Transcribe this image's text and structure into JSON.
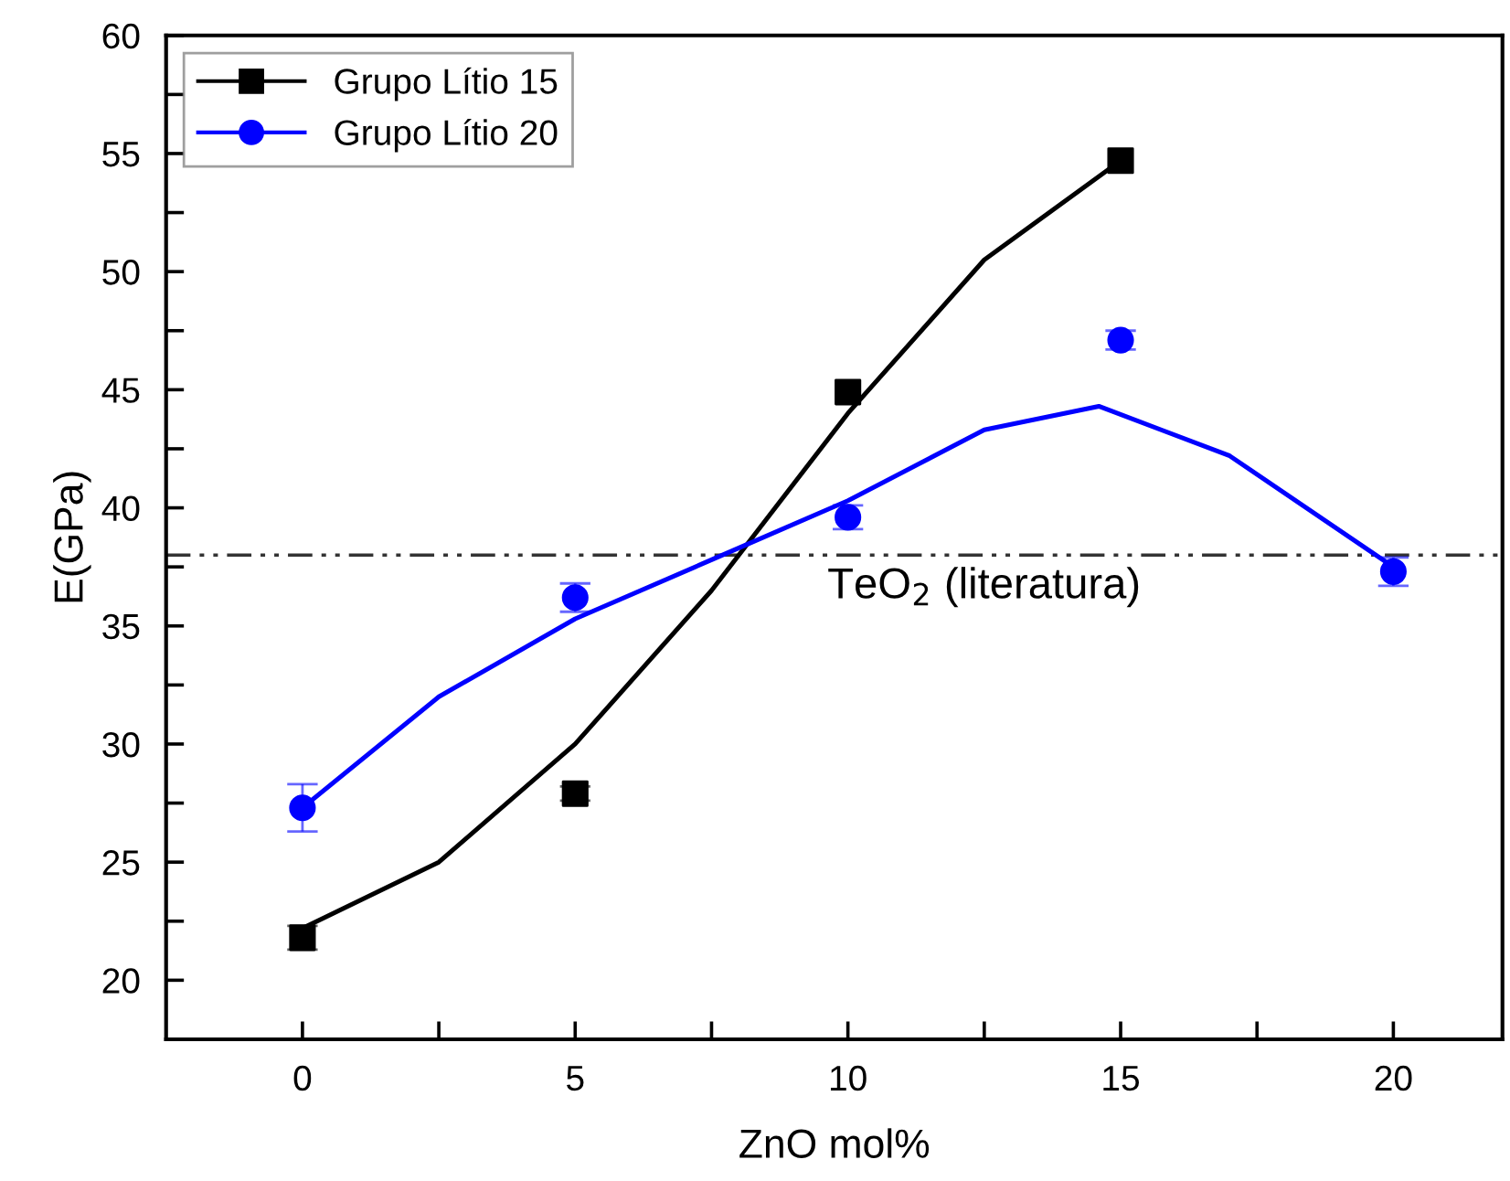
{
  "chart_data": {
    "type": "scatter",
    "xlabel": "ZnO mol%",
    "ylabel": "E(GPa)",
    "x": [
      0,
      5,
      10,
      15,
      20
    ],
    "xlim": [
      -2.5,
      22
    ],
    "ylim": [
      17.5,
      60
    ],
    "xticks": [
      0,
      {
        "value": 2.5,
        "label": null
      },
      5,
      {
        "value": 7.5,
        "label": null
      },
      10,
      {
        "value": 12.5,
        "label": null
      },
      15,
      {
        "value": 17.5,
        "label": null
      },
      20
    ],
    "yticks": [
      20,
      {
        "value": 22.5,
        "label": null
      },
      25,
      {
        "value": 27.5,
        "label": null
      },
      30,
      {
        "value": 32.5,
        "label": null
      },
      35,
      {
        "value": 37.5,
        "label": null
      },
      40,
      {
        "value": 42.5,
        "label": null
      },
      45,
      {
        "value": 47.5,
        "label": null
      },
      50,
      {
        "value": 52.5,
        "label": null
      },
      55,
      {
        "value": 57.5,
        "label": null
      },
      60
    ],
    "grid": false,
    "legend": "top left",
    "series": [
      {
        "name": "Grupo Lítio 15",
        "color": "#000000",
        "marker": "square",
        "values": [
          21.8,
          27.9,
          44.9,
          54.7,
          null
        ],
        "errors": [
          0.5,
          0.3,
          null,
          null,
          null
        ]
      },
      {
        "name": "Grupo Lítio 20",
        "color": "#0000ff",
        "marker": "circle",
        "values": [
          27.3,
          36.2,
          39.6,
          47.1,
          37.3
        ],
        "errors": [
          1.0,
          0.6,
          0.5,
          0.4,
          0.6
        ]
      },
      {
        "type": "line",
        "color": "#000000",
        "x": [
          0,
          2.5,
          5,
          7.5,
          8.1,
          10,
          12.5,
          15
        ],
        "values": [
          22.2,
          25,
          30,
          36.5,
          38.3,
          44,
          50.5,
          54.7
        ]
      },
      {
        "type": "line",
        "color": "#0000ff",
        "x": [
          0,
          2.5,
          5,
          7.5,
          10,
          12.5,
          14.6,
          17,
          20
        ],
        "values": [
          27.3,
          32,
          35.3,
          37.8,
          40.3,
          43.3,
          44.3,
          42.2,
          37.5
        ]
      }
    ],
    "ref_lines": [
      {
        "axis": "y",
        "value": 38,
        "label": "TeO$_{2}$ (literatura)",
        "color": "#333333",
        "line_style": "dashdotdot"
      }
    ]
  }
}
